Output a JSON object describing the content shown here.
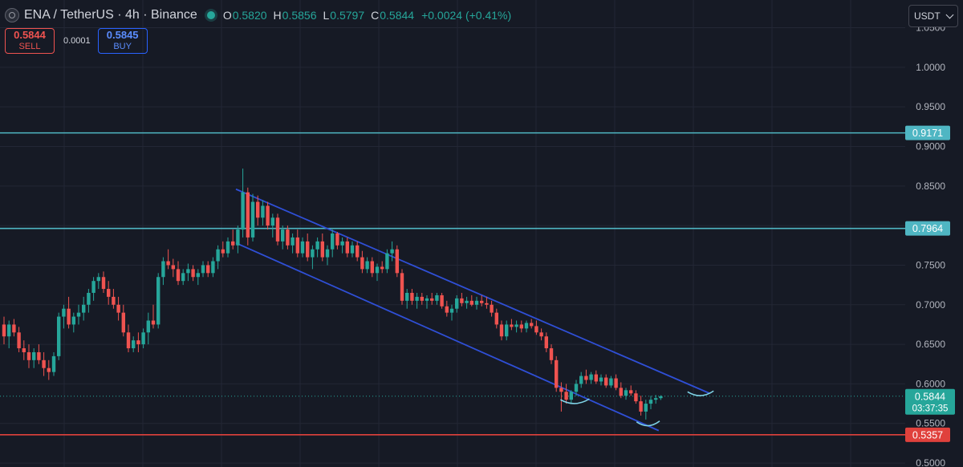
{
  "header": {
    "symbol": "ENA / TetherUS · 4h · Binance",
    "ohlc": [
      {
        "key": "O",
        "value": "0.5820"
      },
      {
        "key": "H",
        "value": "0.5856"
      },
      {
        "key": "L",
        "value": "0.5797"
      },
      {
        "key": "C",
        "value": "0.5844"
      }
    ],
    "change": "+0.0024 (+0.41%)"
  },
  "trade": {
    "sell_price": "0.5844",
    "sell_label": "SELL",
    "spread": "0.0001",
    "buy_price": "0.5845",
    "buy_label": "BUY"
  },
  "currency_selector": "USDT",
  "colors": {
    "background": "#161a25",
    "grid": "#232735",
    "up": "#26a69a",
    "down": "#ef5350",
    "channel": "#2f4fd6",
    "level_cyan": "#4fb6c3",
    "level_red": "#e0413c"
  },
  "chart_data": {
    "type": "candlestick",
    "ylim": [
      0.495,
      1.085
    ],
    "yticks": [
      "1.0500",
      "1.0000",
      "0.9500",
      "0.9000",
      "0.8500",
      "0.8000",
      "0.7500",
      "0.7000",
      "0.6500",
      "0.6000",
      "0.5500",
      "0.5000"
    ],
    "horizontal_levels": [
      {
        "price": 0.9171,
        "label": "0.9171",
        "color": "#4fb6c3"
      },
      {
        "price": 0.7964,
        "label": "0.7964",
        "color": "#4fb6c3"
      },
      {
        "price": 0.5357,
        "label": "0.5357",
        "color": "#e0413c"
      }
    ],
    "last_price": {
      "price": 0.5844,
      "label": "0.5844",
      "countdown": "03:37:35"
    },
    "channel": {
      "upper": [
        [
          0.245,
          0.846
        ],
        [
          0.737,
          0.588
        ]
      ],
      "lower": [
        [
          0.245,
          0.778
        ],
        [
          0.684,
          0.541
        ]
      ]
    },
    "annotations": [
      {
        "type": "arc",
        "x0": 0.582,
        "x1": 0.612,
        "y": 0.578
      },
      {
        "type": "arc",
        "x0": 0.661,
        "x1": 0.685,
        "y": 0.55
      },
      {
        "type": "arc",
        "x0": 0.714,
        "x1": 0.741,
        "y": 0.588
      }
    ],
    "candles": [
      [
        0.675,
        0.685,
        0.65,
        0.66
      ],
      [
        0.66,
        0.68,
        0.645,
        0.675
      ],
      [
        0.675,
        0.682,
        0.66,
        0.665
      ],
      [
        0.665,
        0.672,
        0.64,
        0.645
      ],
      [
        0.645,
        0.655,
        0.63,
        0.64
      ],
      [
        0.64,
        0.65,
        0.62,
        0.63
      ],
      [
        0.63,
        0.645,
        0.62,
        0.64
      ],
      [
        0.64,
        0.65,
        0.625,
        0.63
      ],
      [
        0.63,
        0.64,
        0.61,
        0.62
      ],
      [
        0.62,
        0.63,
        0.605,
        0.615
      ],
      [
        0.615,
        0.64,
        0.61,
        0.635
      ],
      [
        0.635,
        0.69,
        0.63,
        0.685
      ],
      [
        0.685,
        0.7,
        0.67,
        0.695
      ],
      [
        0.695,
        0.71,
        0.67,
        0.675
      ],
      [
        0.675,
        0.69,
        0.665,
        0.685
      ],
      [
        0.685,
        0.7,
        0.675,
        0.69
      ],
      [
        0.69,
        0.71,
        0.68,
        0.7
      ],
      [
        0.7,
        0.72,
        0.69,
        0.715
      ],
      [
        0.715,
        0.735,
        0.705,
        0.73
      ],
      [
        0.73,
        0.74,
        0.72,
        0.735
      ],
      [
        0.735,
        0.742,
        0.715,
        0.72
      ],
      [
        0.72,
        0.73,
        0.7,
        0.71
      ],
      [
        0.71,
        0.72,
        0.695,
        0.7
      ],
      [
        0.7,
        0.71,
        0.68,
        0.69
      ],
      [
        0.69,
        0.7,
        0.66,
        0.665
      ],
      [
        0.665,
        0.675,
        0.64,
        0.645
      ],
      [
        0.645,
        0.66,
        0.64,
        0.655
      ],
      [
        0.655,
        0.665,
        0.64,
        0.65
      ],
      [
        0.65,
        0.67,
        0.645,
        0.665
      ],
      [
        0.665,
        0.69,
        0.65,
        0.68
      ],
      [
        0.68,
        0.7,
        0.67,
        0.675
      ],
      [
        0.675,
        0.74,
        0.67,
        0.735
      ],
      [
        0.735,
        0.76,
        0.725,
        0.755
      ],
      [
        0.755,
        0.77,
        0.745,
        0.75
      ],
      [
        0.75,
        0.758,
        0.735,
        0.745
      ],
      [
        0.745,
        0.755,
        0.725,
        0.73
      ],
      [
        0.73,
        0.745,
        0.725,
        0.74
      ],
      [
        0.74,
        0.752,
        0.73,
        0.745
      ],
      [
        0.745,
        0.75,
        0.73,
        0.735
      ],
      [
        0.735,
        0.745,
        0.725,
        0.74
      ],
      [
        0.74,
        0.755,
        0.735,
        0.75
      ],
      [
        0.75,
        0.755,
        0.735,
        0.74
      ],
      [
        0.74,
        0.76,
        0.735,
        0.755
      ],
      [
        0.755,
        0.775,
        0.745,
        0.77
      ],
      [
        0.77,
        0.78,
        0.76,
        0.765
      ],
      [
        0.765,
        0.785,
        0.76,
        0.78
      ],
      [
        0.78,
        0.795,
        0.77,
        0.775
      ],
      [
        0.775,
        0.8,
        0.765,
        0.795
      ],
      [
        0.795,
        0.872,
        0.785,
        0.842
      ],
      [
        0.842,
        0.848,
        0.775,
        0.785
      ],
      [
        0.785,
        0.84,
        0.78,
        0.83
      ],
      [
        0.83,
        0.838,
        0.8,
        0.81
      ],
      [
        0.81,
        0.832,
        0.8,
        0.825
      ],
      [
        0.825,
        0.83,
        0.795,
        0.8
      ],
      [
        0.8,
        0.815,
        0.785,
        0.81
      ],
      [
        0.81,
        0.815,
        0.775,
        0.78
      ],
      [
        0.78,
        0.8,
        0.77,
        0.795
      ],
      [
        0.795,
        0.8,
        0.77,
        0.775
      ],
      [
        0.775,
        0.79,
        0.765,
        0.785
      ],
      [
        0.785,
        0.795,
        0.76,
        0.765
      ],
      [
        0.765,
        0.785,
        0.76,
        0.78
      ],
      [
        0.78,
        0.79,
        0.755,
        0.76
      ],
      [
        0.76,
        0.775,
        0.745,
        0.77
      ],
      [
        0.77,
        0.785,
        0.76,
        0.78
      ],
      [
        0.78,
        0.79,
        0.755,
        0.76
      ],
      [
        0.76,
        0.775,
        0.75,
        0.77
      ],
      [
        0.77,
        0.795,
        0.76,
        0.79
      ],
      [
        0.79,
        0.792,
        0.77,
        0.775
      ],
      [
        0.775,
        0.785,
        0.765,
        0.78
      ],
      [
        0.78,
        0.785,
        0.76,
        0.765
      ],
      [
        0.765,
        0.78,
        0.76,
        0.775
      ],
      [
        0.775,
        0.78,
        0.755,
        0.76
      ],
      [
        0.76,
        0.768,
        0.74,
        0.745
      ],
      [
        0.745,
        0.76,
        0.74,
        0.755
      ],
      [
        0.755,
        0.76,
        0.735,
        0.74
      ],
      [
        0.74,
        0.752,
        0.73,
        0.748
      ],
      [
        0.748,
        0.755,
        0.74,
        0.745
      ],
      [
        0.745,
        0.77,
        0.74,
        0.765
      ],
      [
        0.765,
        0.78,
        0.755,
        0.77
      ],
      [
        0.77,
        0.775,
        0.735,
        0.74
      ],
      [
        0.74,
        0.745,
        0.7,
        0.705
      ],
      [
        0.705,
        0.72,
        0.695,
        0.715
      ],
      [
        0.715,
        0.72,
        0.7,
        0.705
      ],
      [
        0.705,
        0.715,
        0.695,
        0.71
      ],
      [
        0.71,
        0.715,
        0.7,
        0.705
      ],
      [
        0.705,
        0.712,
        0.695,
        0.708
      ],
      [
        0.708,
        0.715,
        0.7,
        0.705
      ],
      [
        0.705,
        0.715,
        0.7,
        0.712
      ],
      [
        0.712,
        0.715,
        0.695,
        0.698
      ],
      [
        0.698,
        0.705,
        0.685,
        0.69
      ],
      [
        0.69,
        0.7,
        0.68,
        0.695
      ],
      [
        0.695,
        0.712,
        0.69,
        0.708
      ],
      [
        0.708,
        0.715,
        0.698,
        0.702
      ],
      [
        0.702,
        0.71,
        0.695,
        0.705
      ],
      [
        0.705,
        0.712,
        0.698,
        0.7
      ],
      [
        0.7,
        0.71,
        0.694,
        0.705
      ],
      [
        0.705,
        0.712,
        0.698,
        0.702
      ],
      [
        0.702,
        0.71,
        0.695,
        0.7
      ],
      [
        0.7,
        0.705,
        0.685,
        0.69
      ],
      [
        0.69,
        0.695,
        0.67,
        0.675
      ],
      [
        0.675,
        0.68,
        0.655,
        0.66
      ],
      [
        0.66,
        0.68,
        0.655,
        0.675
      ],
      [
        0.675,
        0.682,
        0.668,
        0.672
      ],
      [
        0.672,
        0.68,
        0.665,
        0.675
      ],
      [
        0.675,
        0.68,
        0.665,
        0.67
      ],
      [
        0.67,
        0.68,
        0.665,
        0.677
      ],
      [
        0.677,
        0.682,
        0.67,
        0.673
      ],
      [
        0.673,
        0.68,
        0.662,
        0.665
      ],
      [
        0.665,
        0.67,
        0.655,
        0.66
      ],
      [
        0.66,
        0.665,
        0.64,
        0.645
      ],
      [
        0.645,
        0.65,
        0.625,
        0.63
      ],
      [
        0.63,
        0.635,
        0.59,
        0.595
      ],
      [
        0.595,
        0.602,
        0.565,
        0.59
      ],
      [
        0.59,
        0.6,
        0.575,
        0.58
      ],
      [
        0.58,
        0.592,
        0.575,
        0.59
      ],
      [
        0.59,
        0.605,
        0.585,
        0.6
      ],
      [
        0.6,
        0.615,
        0.595,
        0.61
      ],
      [
        0.61,
        0.618,
        0.6,
        0.605
      ],
      [
        0.605,
        0.615,
        0.6,
        0.612
      ],
      [
        0.612,
        0.617,
        0.6,
        0.603
      ],
      [
        0.603,
        0.612,
        0.598,
        0.608
      ],
      [
        0.608,
        0.612,
        0.595,
        0.598
      ],
      [
        0.598,
        0.61,
        0.595,
        0.607
      ],
      [
        0.607,
        0.612,
        0.592,
        0.595
      ],
      [
        0.595,
        0.602,
        0.582,
        0.585
      ],
      [
        0.585,
        0.595,
        0.58,
        0.592
      ],
      [
        0.592,
        0.598,
        0.585,
        0.588
      ],
      [
        0.588,
        0.592,
        0.575,
        0.578
      ],
      [
        0.578,
        0.585,
        0.56,
        0.565
      ],
      [
        0.565,
        0.58,
        0.555,
        0.575
      ],
      [
        0.575,
        0.585,
        0.568,
        0.58
      ],
      [
        0.58,
        0.586,
        0.575,
        0.582
      ],
      [
        0.582,
        0.5856,
        0.5797,
        0.5844
      ]
    ]
  }
}
